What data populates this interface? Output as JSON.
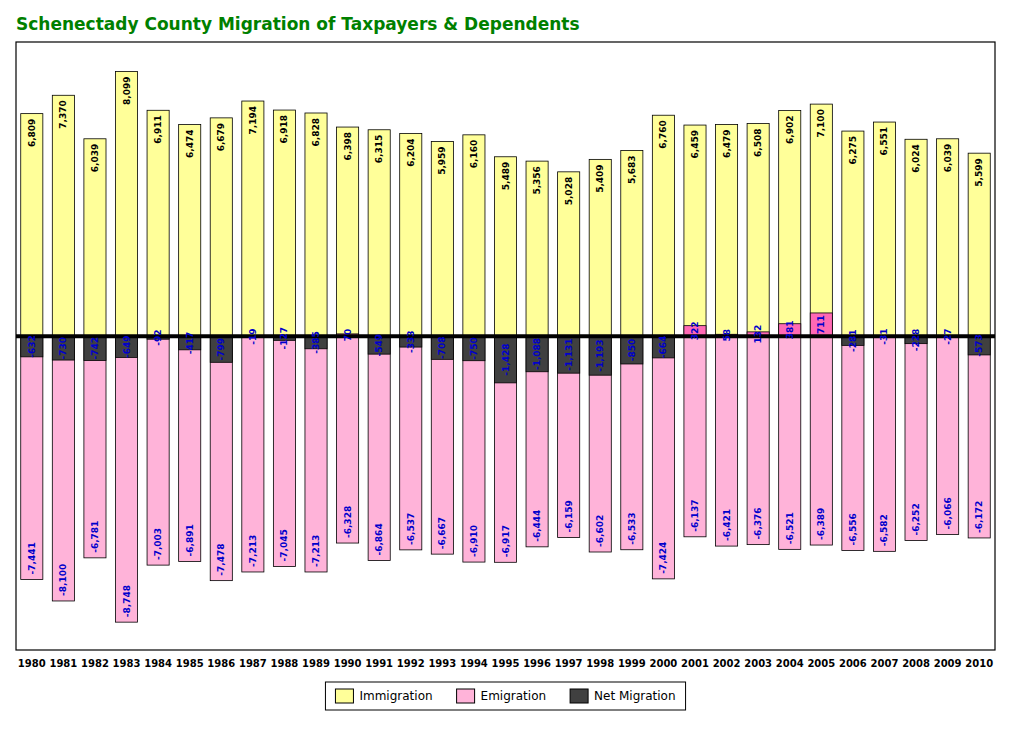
{
  "chart_data": {
    "type": "bar",
    "title": "Schenectady County Migration of Taxpayers & Dependents",
    "categories": [
      "1980",
      "1981",
      "1982",
      "1983",
      "1984",
      "1985",
      "1986",
      "1987",
      "1988",
      "1989",
      "1990",
      "1991",
      "1992",
      "1993",
      "1994",
      "1995",
      "1996",
      "1997",
      "1998",
      "1999",
      "2000",
      "2001",
      "2002",
      "2003",
      "2004",
      "2005",
      "2006",
      "2007",
      "2008",
      "2009",
      "2010"
    ],
    "series": [
      {
        "name": "Immigration",
        "color": "#ffff99",
        "values": [
          6809,
          7370,
          6039,
          8099,
          6911,
          6474,
          6679,
          7194,
          6918,
          6828,
          6398,
          6315,
          6204,
          5959,
          6160,
          5489,
          5356,
          5028,
          5409,
          5683,
          6760,
          6459,
          6479,
          6508,
          6902,
          7100,
          6275,
          6551,
          6024,
          6039,
          5599
        ],
        "value_labels": [
          "6,809",
          "7,370",
          "6,039",
          "8,099",
          "6,911",
          "6,474",
          "6,679",
          "7,194",
          "6,918",
          "6,828",
          "6,398",
          "6,315",
          "6,204",
          "5,959",
          "6,160",
          "5,489",
          "5,356",
          "5,028",
          "5,409",
          "5,683",
          "6,760",
          "6,459",
          "6,479",
          "6,508",
          "6,902",
          "7,100",
          "6,275",
          "6,551",
          "6,024",
          "6,039",
          "5,599"
        ]
      },
      {
        "name": "Emigration",
        "color": "#ffb3d9",
        "values": [
          -7441,
          -8100,
          -6781,
          -8748,
          -7003,
          -6891,
          -7478,
          -7213,
          -7045,
          -7213,
          -6328,
          -6864,
          -6537,
          -6667,
          -6910,
          -6917,
          -6444,
          -6159,
          -6602,
          -6533,
          -7424,
          -6137,
          -6421,
          -6376,
          -6521,
          -6389,
          -6556,
          -6582,
          -6252,
          -6066,
          -6172
        ],
        "value_labels": [
          "-7,441",
          "-8,100",
          "-6,781",
          "-8,748",
          "-7,003",
          "-6,891",
          "-7,478",
          "-7,213",
          "-7,045",
          "-7,213",
          "-6,328",
          "-6,864",
          "-6,537",
          "-6,667",
          "-6,910",
          "-6,917",
          "-6,444",
          "-6,159",
          "-6,602",
          "-6,533",
          "-7,424",
          "-6,137",
          "-6,421",
          "-6,376",
          "-6,521",
          "-6,389",
          "-6,556",
          "-6,582",
          "-6,252",
          "-6,066",
          "-6,172"
        ]
      },
      {
        "name": "Net Migration",
        "color": "#404040",
        "colors": [
          "#404040",
          "#404040",
          "#404040",
          "#404040",
          "#404040",
          "#404040",
          "#404040",
          "#404040",
          "#404040",
          "#404040",
          "#ff69b4",
          "#404040",
          "#404040",
          "#404040",
          "#404040",
          "#404040",
          "#404040",
          "#404040",
          "#404040",
          "#404040",
          "#404040",
          "#ff69b4",
          "#ff69b4",
          "#ff69b4",
          "#ff69b4",
          "#ff69b4",
          "#404040",
          "#404040",
          "#404040",
          "#404040",
          "#404040"
        ],
        "values": [
          -632,
          -730,
          -742,
          -649,
          -92,
          -417,
          -799,
          -19,
          -127,
          -385,
          70,
          -549,
          -333,
          -708,
          -750,
          -1428,
          -1088,
          -1131,
          -1193,
          -850,
          -664,
          322,
          58,
          132,
          381,
          711,
          -281,
          -31,
          -228,
          -27,
          -573
        ],
        "value_labels": [
          "-632",
          "-730",
          "-742",
          "-649",
          "-92",
          "-417",
          "-799",
          "-19",
          "-127",
          "-385",
          "70",
          "-549",
          "-333",
          "-708",
          "-750",
          "-1,428",
          "-1,088",
          "-1,131",
          "-1,193",
          "-850",
          "-664",
          "322",
          "58",
          "132",
          "381",
          "711",
          "-281",
          "-31",
          "-228",
          "-27",
          "-573"
        ]
      }
    ],
    "ylim": [
      -9600,
      9000
    ],
    "tick_labels": "x",
    "grid": false,
    "legend": "bottom",
    "data_labels": true
  }
}
